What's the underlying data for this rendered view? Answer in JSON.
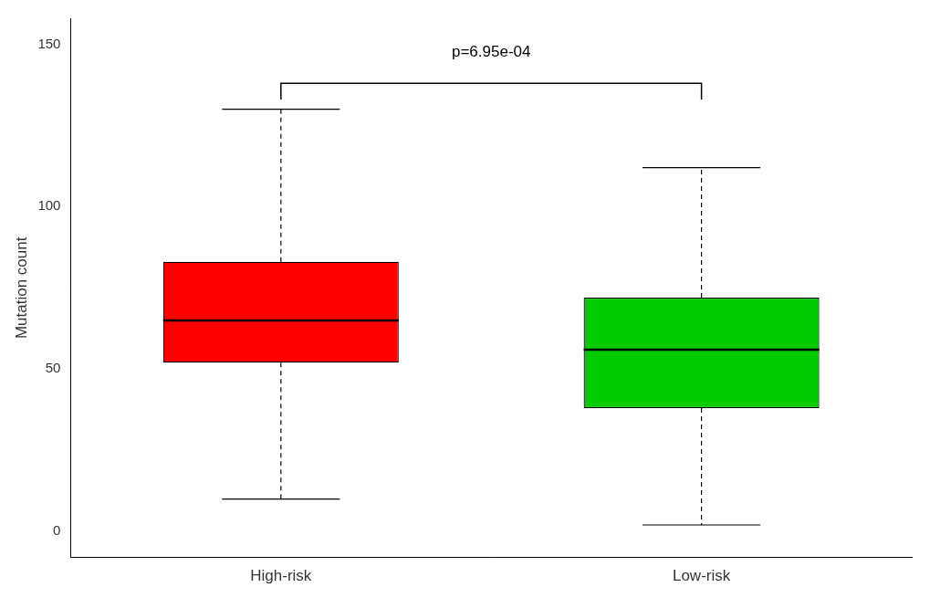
{
  "chart_data": {
    "type": "box",
    "ylabel": "Mutation count",
    "categories": [
      "High-risk",
      "Low-risk"
    ],
    "colors": [
      "#FF0000",
      "#00CC00"
    ],
    "boxes": [
      {
        "whislo": 10,
        "q1": 52,
        "med": 65,
        "q3": 83,
        "whishi": 130
      },
      {
        "whislo": 2,
        "q1": 38,
        "med": 56,
        "q3": 72,
        "whishi": 112
      }
    ],
    "ylim": [
      -8,
      158
    ],
    "yticks": [
      0,
      50,
      100,
      150
    ],
    "grid": false,
    "annotations": [
      {
        "text": "p=6.95e-04",
        "y": 145,
        "bracket_y": 138,
        "bracket_drop": 5,
        "from": "High-risk",
        "to": "Low-risk"
      }
    ]
  }
}
